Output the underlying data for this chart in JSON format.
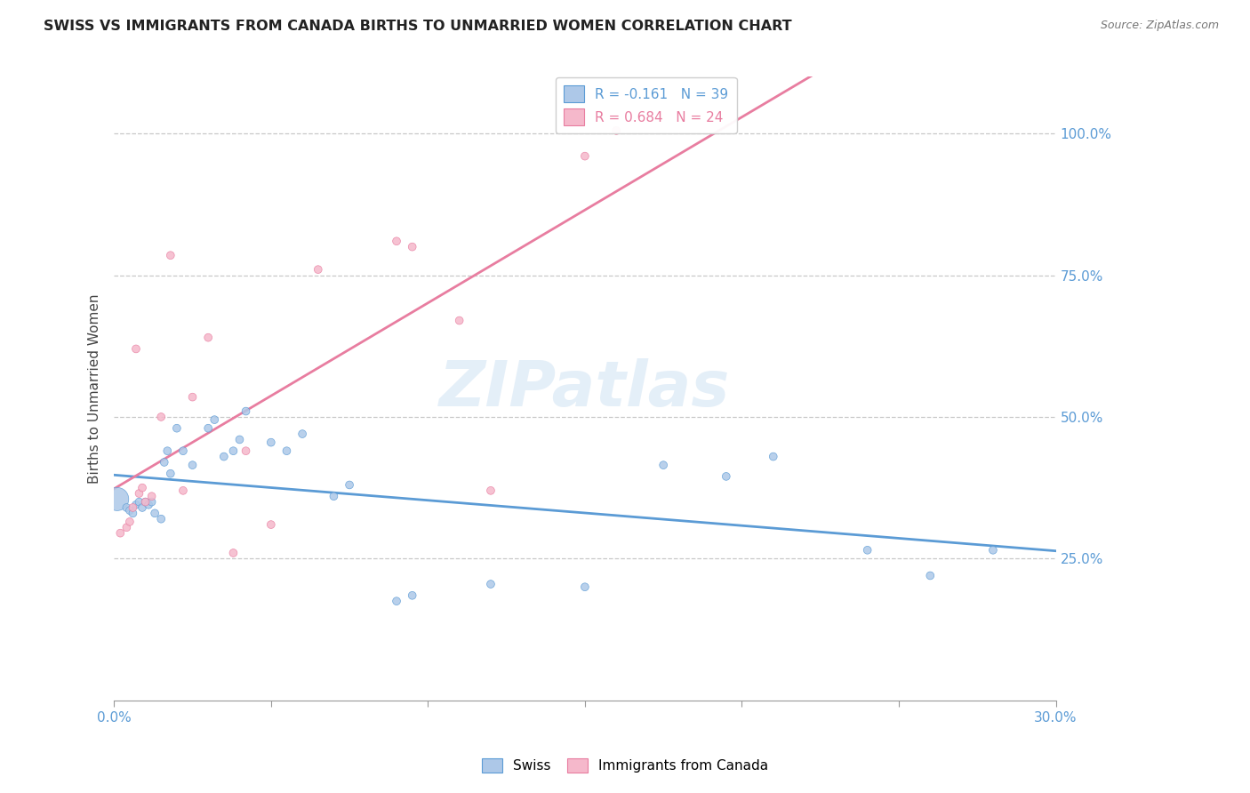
{
  "title": "SWISS VS IMMIGRANTS FROM CANADA BIRTHS TO UNMARRIED WOMEN CORRELATION CHART",
  "source": "Source: ZipAtlas.com",
  "ylabel": "Births to Unmarried Women",
  "x_min": 0.0,
  "x_max": 0.3,
  "y_min": 0.0,
  "y_max": 1.1,
  "x_ticks": [
    0.0,
    0.05,
    0.1,
    0.15,
    0.2,
    0.25,
    0.3
  ],
  "y_ticks": [
    0.25,
    0.5,
    0.75,
    1.0
  ],
  "y_tick_labels": [
    "25.0%",
    "50.0%",
    "75.0%",
    "100.0%"
  ],
  "swiss_color": "#adc8e8",
  "canada_color": "#f5b8cb",
  "swiss_line_color": "#5b9bd5",
  "canada_line_color": "#e87da0",
  "swiss_R": -0.161,
  "swiss_N": 39,
  "canada_R": 0.684,
  "canada_N": 24,
  "watermark": "ZIPatlas",
  "legend_label_swiss": "Swiss",
  "legend_label_canada": "Immigrants from Canada",
  "swiss_x": [
    0.001,
    0.004,
    0.005,
    0.006,
    0.007,
    0.008,
    0.009,
    0.01,
    0.011,
    0.012,
    0.013,
    0.015,
    0.016,
    0.017,
    0.018,
    0.02,
    0.022,
    0.025,
    0.03,
    0.032,
    0.035,
    0.038,
    0.04,
    0.042,
    0.05,
    0.055,
    0.06,
    0.07,
    0.075,
    0.09,
    0.095,
    0.12,
    0.15,
    0.175,
    0.195,
    0.21,
    0.24,
    0.26,
    0.28
  ],
  "swiss_y": [
    0.355,
    0.34,
    0.335,
    0.33,
    0.345,
    0.35,
    0.34,
    0.35,
    0.345,
    0.35,
    0.33,
    0.32,
    0.42,
    0.44,
    0.4,
    0.48,
    0.44,
    0.415,
    0.48,
    0.495,
    0.43,
    0.44,
    0.46,
    0.51,
    0.455,
    0.44,
    0.47,
    0.36,
    0.38,
    0.175,
    0.185,
    0.205,
    0.2,
    0.415,
    0.395,
    0.43,
    0.265,
    0.22,
    0.265
  ],
  "swiss_sizes": [
    350,
    40,
    40,
    40,
    40,
    40,
    40,
    40,
    40,
    40,
    40,
    40,
    40,
    40,
    40,
    40,
    40,
    40,
    40,
    40,
    40,
    40,
    40,
    40,
    40,
    40,
    40,
    40,
    40,
    40,
    40,
    40,
    40,
    40,
    40,
    40,
    40,
    40,
    40
  ],
  "canada_x": [
    0.002,
    0.004,
    0.005,
    0.006,
    0.007,
    0.008,
    0.009,
    0.01,
    0.012,
    0.015,
    0.018,
    0.022,
    0.025,
    0.03,
    0.038,
    0.042,
    0.05,
    0.065,
    0.09,
    0.095,
    0.11,
    0.12,
    0.15,
    0.16
  ],
  "canada_y": [
    0.295,
    0.305,
    0.315,
    0.34,
    0.62,
    0.365,
    0.375,
    0.35,
    0.36,
    0.5,
    0.785,
    0.37,
    0.535,
    0.64,
    0.26,
    0.44,
    0.31,
    0.76,
    0.81,
    0.8,
    0.67,
    0.37,
    0.96,
    1.005
  ],
  "canada_sizes": [
    40,
    40,
    40,
    40,
    40,
    40,
    40,
    40,
    40,
    40,
    40,
    40,
    40,
    40,
    40,
    40,
    40,
    40,
    40,
    40,
    40,
    40,
    40,
    40
  ]
}
